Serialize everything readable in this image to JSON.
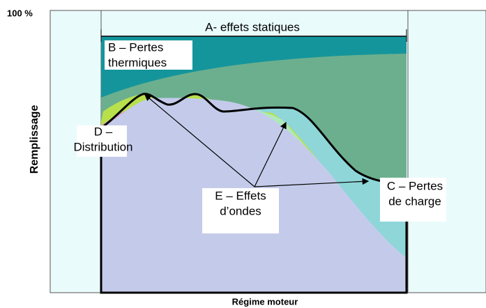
{
  "axis": {
    "top_label": "100 %",
    "y_label": "Remplissage",
    "x_label": "Régime moteur"
  },
  "zones": {
    "a": {
      "lines": [
        "A- effets statiques"
      ]
    },
    "b": {
      "lines": [
        "B – Pertes",
        "thermiques"
      ]
    },
    "d": {
      "lines": [
        "D –",
        "Distribution"
      ]
    },
    "e": {
      "lines": [
        "E – Effets",
        "d’ondes"
      ]
    },
    "c": {
      "lines": [
        "C – Pertes",
        "de charge"
      ]
    }
  }
}
